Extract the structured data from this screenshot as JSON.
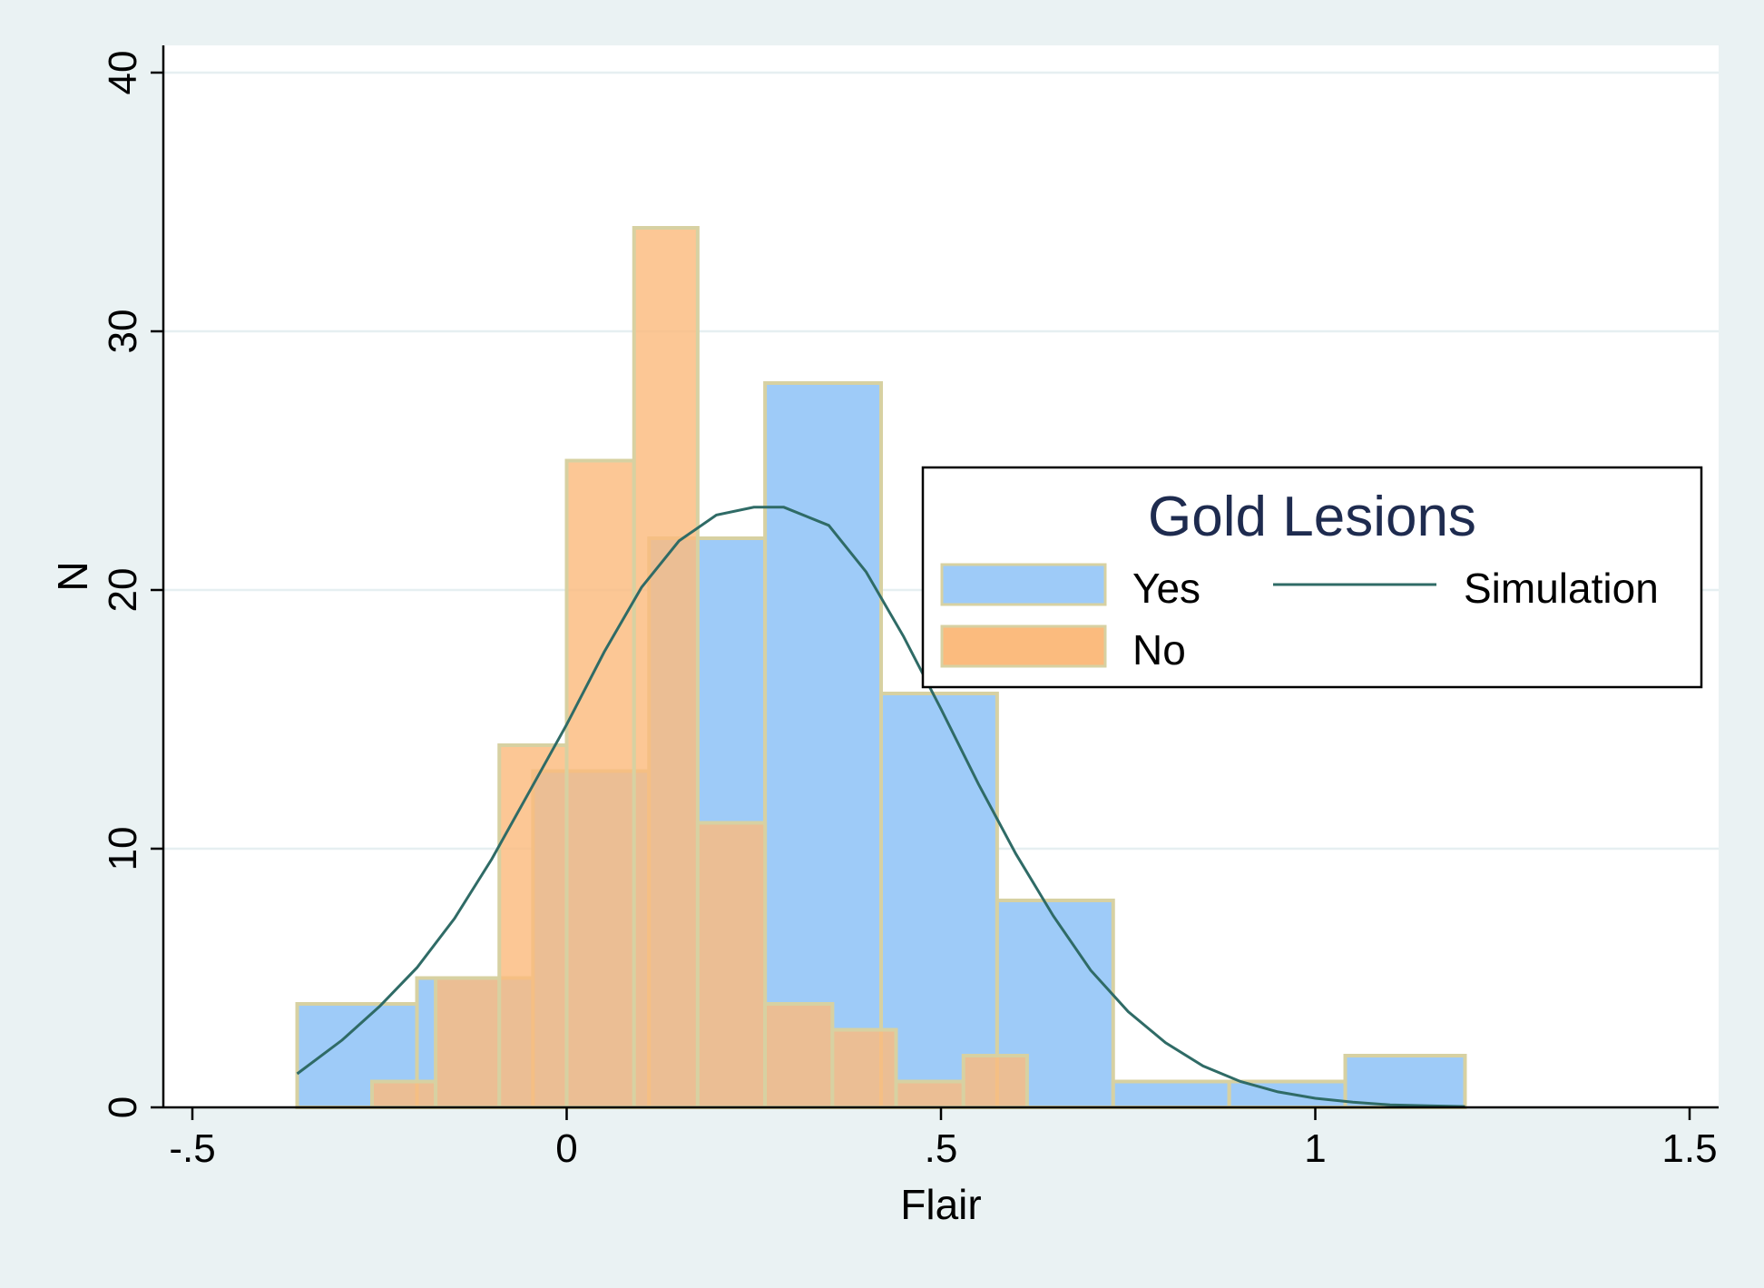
{
  "chart_data": {
    "type": "bar",
    "subtype": "overlaid-histogram-with-density-curve",
    "xlabel": "Flair",
    "ylabel": "N",
    "xlim": [
      -0.5,
      1.5
    ],
    "ylim": [
      0,
      40
    ],
    "xticks": [
      {
        "value": -0.5,
        "label": "-.5"
      },
      {
        "value": 0,
        "label": "0"
      },
      {
        "value": 0.5,
        "label": ".5"
      },
      {
        "value": 1,
        "label": "1"
      },
      {
        "value": 1.5,
        "label": "1.5"
      }
    ],
    "yticks": [
      {
        "value": 0,
        "label": "0"
      },
      {
        "value": 10,
        "label": "10"
      },
      {
        "value": 20,
        "label": "20"
      },
      {
        "value": 30,
        "label": "30"
      },
      {
        "value": 40,
        "label": "40"
      }
    ],
    "grid": "horizontal",
    "legend": {
      "title": "Gold Lesions",
      "placement": "right",
      "entries": [
        {
          "label": "Yes",
          "kind": "bar",
          "series": "yes"
        },
        {
          "label": "No",
          "kind": "bar",
          "series": "no"
        },
        {
          "label": "Simulation",
          "kind": "line",
          "series": "simulation"
        }
      ]
    },
    "series": [
      {
        "key": "yes",
        "name": "Yes",
        "color": "#9ecbf8",
        "bins": [
          {
            "x0": -0.36,
            "x1": -0.2,
            "count": 4
          },
          {
            "x0": -0.2,
            "x1": -0.045,
            "count": 5
          },
          {
            "x0": -0.045,
            "x1": 0.11,
            "count": 13
          },
          {
            "x0": 0.11,
            "x1": 0.265,
            "count": 22
          },
          {
            "x0": 0.265,
            "x1": 0.42,
            "count": 28
          },
          {
            "x0": 0.42,
            "x1": 0.575,
            "count": 16
          },
          {
            "x0": 0.575,
            "x1": 0.73,
            "count": 8
          },
          {
            "x0": 0.73,
            "x1": 0.885,
            "count": 1
          },
          {
            "x0": 0.885,
            "x1": 1.04,
            "count": 1
          },
          {
            "x0": 1.04,
            "x1": 1.2,
            "count": 2
          }
        ]
      },
      {
        "key": "no",
        "name": "No",
        "color": "#fbbb7e",
        "bins": [
          {
            "x0": -0.26,
            "x1": -0.175,
            "count": 1
          },
          {
            "x0": -0.175,
            "x1": -0.09,
            "count": 5
          },
          {
            "x0": -0.09,
            "x1": 0.0,
            "count": 14
          },
          {
            "x0": 0.0,
            "x1": 0.09,
            "count": 25
          },
          {
            "x0": 0.09,
            "x1": 0.175,
            "count": 34
          },
          {
            "x0": 0.175,
            "x1": 0.265,
            "count": 11
          },
          {
            "x0": 0.265,
            "x1": 0.355,
            "count": 4
          },
          {
            "x0": 0.355,
            "x1": 0.44,
            "count": 3
          },
          {
            "x0": 0.44,
            "x1": 0.53,
            "count": 1
          },
          {
            "x0": 0.53,
            "x1": 0.615,
            "count": 2
          }
        ]
      },
      {
        "key": "simulation",
        "name": "Simulation",
        "type": "line",
        "color": "#2f6b66",
        "x": [
          -0.36,
          -0.3,
          -0.25,
          -0.2,
          -0.15,
          -0.1,
          -0.05,
          0.0,
          0.05,
          0.1,
          0.15,
          0.2,
          0.25,
          0.29,
          0.35,
          0.4,
          0.45,
          0.5,
          0.55,
          0.6,
          0.65,
          0.7,
          0.75,
          0.8,
          0.85,
          0.9,
          0.95,
          1.0,
          1.05,
          1.1,
          1.15,
          1.2
        ],
        "y": [
          1.3,
          2.6,
          3.9,
          5.4,
          7.3,
          9.6,
          12.2,
          14.8,
          17.6,
          20.1,
          21.9,
          22.9,
          23.2,
          23.2,
          22.5,
          20.7,
          18.2,
          15.4,
          12.5,
          9.8,
          7.4,
          5.3,
          3.7,
          2.5,
          1.6,
          1.0,
          0.6,
          0.35,
          0.2,
          0.1,
          0.06,
          0.03
        ]
      }
    ]
  }
}
